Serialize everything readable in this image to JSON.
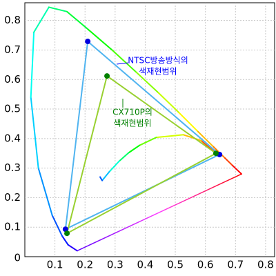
{
  "chart_data": {
    "type": "scatter",
    "xlim": [
      0,
      0.83
    ],
    "ylim": [
      0,
      0.86
    ],
    "xticks": [
      0.1,
      0.2,
      0.3,
      0.4,
      0.5,
      0.6,
      0.7,
      0.8
    ],
    "yticks": [
      0,
      0.1,
      0.2,
      0.3,
      0.4,
      0.5,
      0.6,
      0.7,
      0.8
    ],
    "grid": true,
    "spectral_locus": {
      "x": [
        0.174,
        0.144,
        0.124,
        0.091,
        0.045,
        0.02,
        0.03,
        0.08,
        0.14,
        0.21,
        0.29,
        0.37,
        0.444,
        0.513,
        0.575,
        0.627,
        0.665,
        0.691,
        0.72
      ],
      "y": [
        0.02,
        0.04,
        0.07,
        0.14,
        0.3,
        0.54,
        0.76,
        0.845,
        0.83,
        0.77,
        0.7,
        0.625,
        0.555,
        0.487,
        0.424,
        0.372,
        0.334,
        0.308,
        0.28
      ]
    },
    "planckian_locus": {
      "x": [
        0.63,
        0.586,
        0.527,
        0.437,
        0.381,
        0.345,
        0.314,
        0.281,
        0.257,
        0.25
      ],
      "y": [
        0.355,
        0.393,
        0.413,
        0.404,
        0.377,
        0.352,
        0.324,
        0.288,
        0.258,
        0.27
      ]
    },
    "series": [
      {
        "color": "#50b4f0",
        "marker_color": "#0000e0",
        "x": [
          0.209,
          0.647,
          0.135
        ],
        "y": [
          0.729,
          0.346,
          0.093
        ]
      },
      {
        "color": "#98d030",
        "marker_color": "#008000",
        "x": [
          0.273,
          0.635,
          0.14
        ],
        "y": [
          0.612,
          0.35,
          0.079
        ]
      }
    ],
    "annotations": [
      {
        "text": [
          "NTSC방송방식의",
          "색재현범위"
        ],
        "color": "#0000ff"
      },
      {
        "text": [
          "CX710P의",
          "색재현범위"
        ],
        "color": "#008000"
      }
    ]
  }
}
